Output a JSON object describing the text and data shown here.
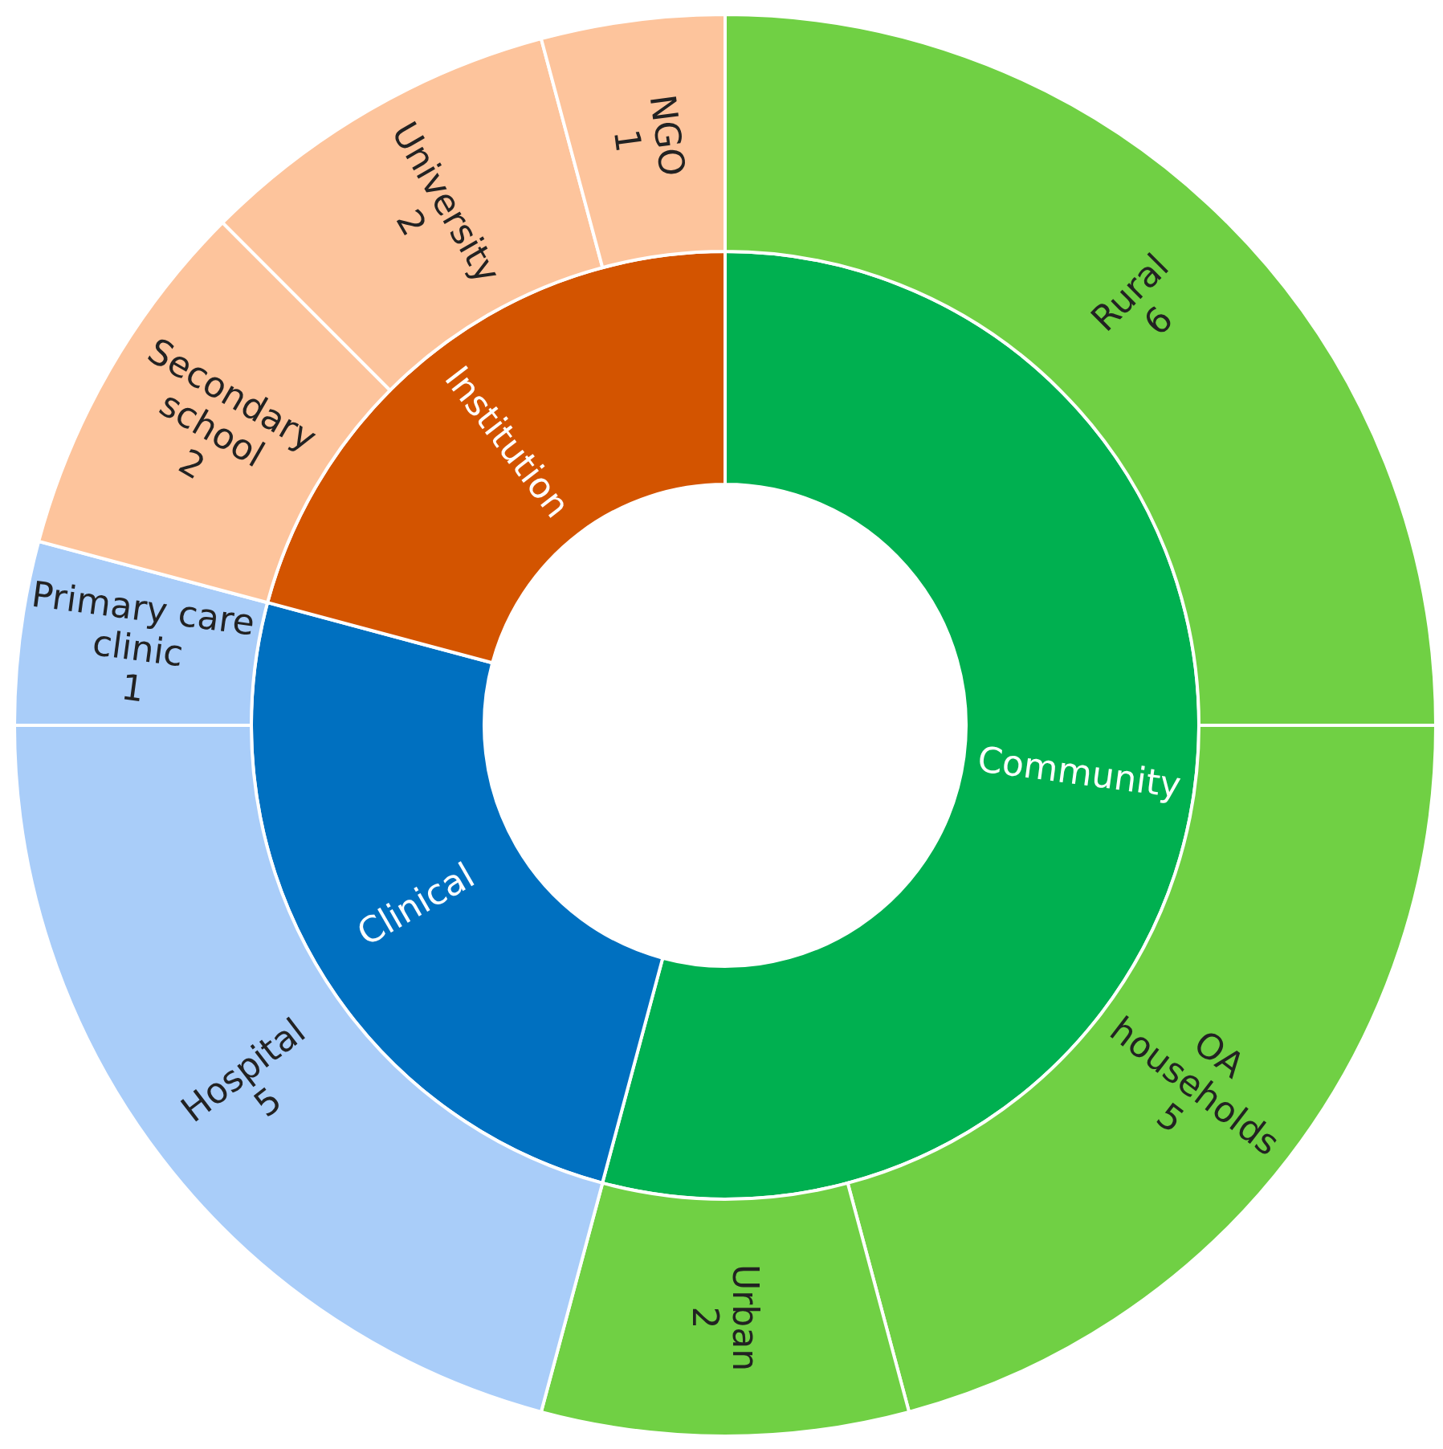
{
  "chart_data": [
    {
      "type": "donut",
      "categories": [
        "Community",
        "Clinical",
        "Institution"
      ],
      "values": [
        54.17,
        25,
        20.83
      ],
      "colors": [
        "#00b050",
        "#0070c0",
        "#d35400"
      ]
    },
    {
      "type": "donut",
      "categories": [
        "Rural",
        "OA households",
        "Urban",
        "Hospital",
        "Primary care clinic",
        "Secondary school",
        "University",
        "NGO"
      ],
      "values": [
        6,
        5,
        2,
        5,
        1,
        2,
        2,
        1
      ],
      "colors": [
        "#70d044",
        "#70d044",
        "#70d044",
        "#a9cdf9",
        "#a9cdf9",
        "#fdc49c",
        "#fdc49c",
        "#fdc49c"
      ],
      "data_labels": true
    }
  ]
}
